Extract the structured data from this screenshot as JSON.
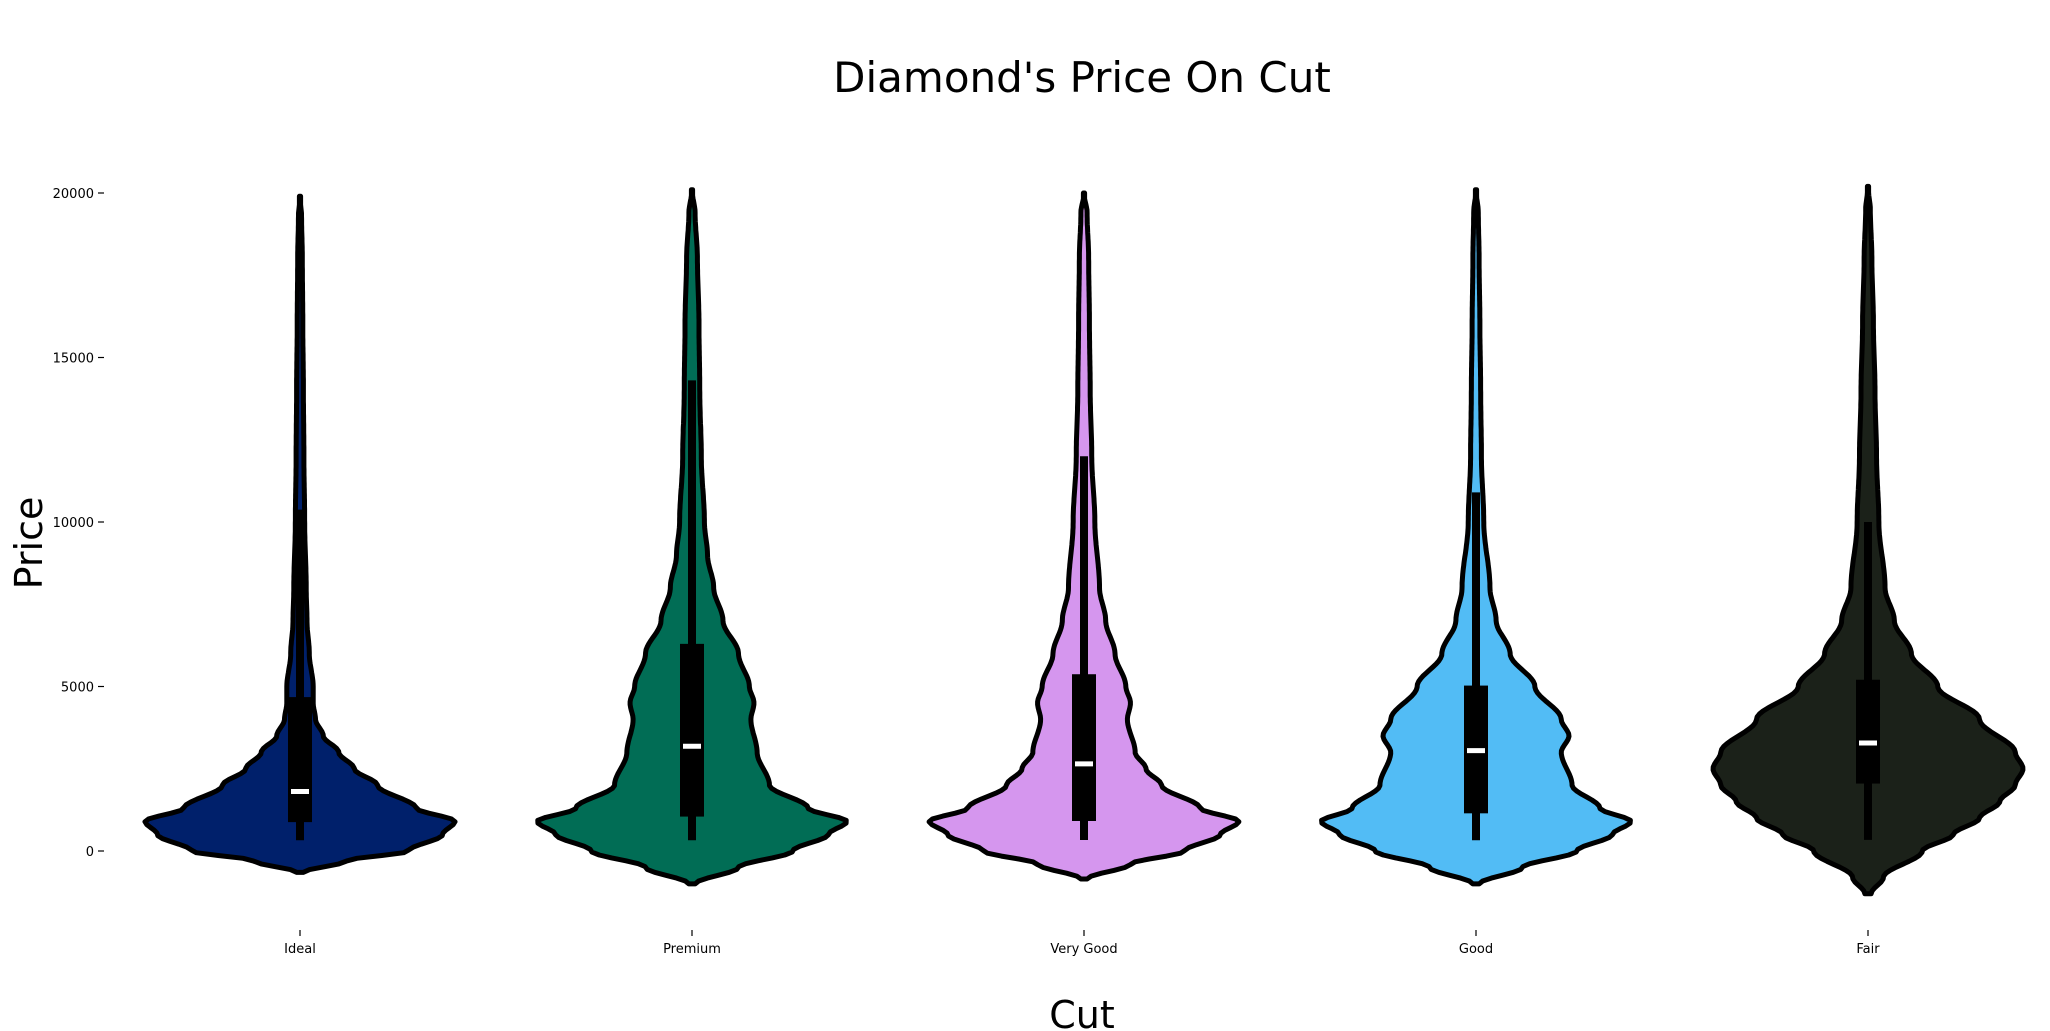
{
  "chart_data": {
    "type": "violin",
    "title": "Diamond's Price On Cut",
    "xlabel": "Cut",
    "ylabel": "Price",
    "ylim": [
      -1500,
      20500
    ],
    "yticks": [
      0,
      5000,
      10000,
      15000,
      20000
    ],
    "ytick_labels": [
      "0",
      "5000",
      "10000",
      "15000",
      "20000"
    ],
    "grid": false,
    "categories": [
      "Ideal",
      "Premium",
      "Very Good",
      "Good",
      "Fair"
    ],
    "colors": [
      "#00206b",
      "#016d55",
      "#d596ee",
      "#52bcf5",
      "#1b2119"
    ],
    "series": [
      {
        "category": "Ideal",
        "min": 326,
        "q1": 878,
        "median": 1810,
        "q3": 4678,
        "whisker_high": 10378,
        "max": 18806,
        "kde_low": -650,
        "kde_high": 19900,
        "density": [
          [
            -650,
            0.02
          ],
          [
            -300,
            0.3
          ],
          [
            0,
            0.7
          ],
          [
            500,
            0.92
          ],
          [
            900,
            1.0
          ],
          [
            1300,
            0.75
          ],
          [
            2000,
            0.5
          ],
          [
            2500,
            0.35
          ],
          [
            3000,
            0.25
          ],
          [
            3500,
            0.15
          ],
          [
            4000,
            0.1
          ],
          [
            4500,
            0.085
          ],
          [
            5000,
            0.085
          ],
          [
            6000,
            0.06
          ],
          [
            7000,
            0.045
          ],
          [
            8000,
            0.04
          ],
          [
            10000,
            0.03
          ],
          [
            12000,
            0.025
          ],
          [
            14000,
            0.022
          ],
          [
            16000,
            0.018
          ],
          [
            18000,
            0.015
          ],
          [
            19300,
            0.01
          ],
          [
            19900,
            0.0
          ]
        ]
      },
      {
        "category": "Premium",
        "min": 326,
        "q1": 1046,
        "median": 3185,
        "q3": 6296,
        "whisker_high": 14304,
        "max": 18823,
        "kde_low": -1000,
        "kde_high": 20100,
        "density": [
          [
            -1000,
            0.02
          ],
          [
            -500,
            0.3
          ],
          [
            0,
            0.65
          ],
          [
            500,
            0.88
          ],
          [
            900,
            1.0
          ],
          [
            1300,
            0.75
          ],
          [
            2000,
            0.5
          ],
          [
            3000,
            0.42
          ],
          [
            4000,
            0.38
          ],
          [
            4500,
            0.4
          ],
          [
            5000,
            0.37
          ],
          [
            6000,
            0.3
          ],
          [
            7000,
            0.2
          ],
          [
            8000,
            0.14
          ],
          [
            9000,
            0.1
          ],
          [
            10000,
            0.08
          ],
          [
            12000,
            0.06
          ],
          [
            14000,
            0.05
          ],
          [
            16000,
            0.045
          ],
          [
            18000,
            0.035
          ],
          [
            19400,
            0.02
          ],
          [
            20100,
            0.0
          ]
        ]
      },
      {
        "category": "Very Good",
        "min": 336,
        "q1": 912,
        "median": 2648,
        "q3": 5373,
        "whisker_high": 12000,
        "max": 18818,
        "kde_low": -850,
        "kde_high": 20000,
        "density": [
          [
            -850,
            0.02
          ],
          [
            -400,
            0.3
          ],
          [
            0,
            0.65
          ],
          [
            500,
            0.88
          ],
          [
            900,
            1.0
          ],
          [
            1300,
            0.75
          ],
          [
            2000,
            0.5
          ],
          [
            2500,
            0.4
          ],
          [
            3000,
            0.33
          ],
          [
            4000,
            0.28
          ],
          [
            4500,
            0.3
          ],
          [
            5000,
            0.27
          ],
          [
            6000,
            0.2
          ],
          [
            7000,
            0.14
          ],
          [
            8000,
            0.1
          ],
          [
            10000,
            0.07
          ],
          [
            12000,
            0.05
          ],
          [
            14000,
            0.04
          ],
          [
            16000,
            0.035
          ],
          [
            18000,
            0.03
          ],
          [
            19400,
            0.02
          ],
          [
            20000,
            0.0
          ]
        ]
      },
      {
        "category": "Good",
        "min": 327,
        "q1": 1145,
        "median": 3050,
        "q3": 5028,
        "whisker_high": 10900,
        "max": 18788,
        "kde_low": -1000,
        "kde_high": 20100,
        "density": [
          [
            -1000,
            0.02
          ],
          [
            -500,
            0.3
          ],
          [
            0,
            0.65
          ],
          [
            500,
            0.88
          ],
          [
            900,
            1.0
          ],
          [
            1300,
            0.8
          ],
          [
            2000,
            0.62
          ],
          [
            3000,
            0.55
          ],
          [
            3500,
            0.6
          ],
          [
            4000,
            0.55
          ],
          [
            5000,
            0.38
          ],
          [
            6000,
            0.22
          ],
          [
            7000,
            0.13
          ],
          [
            8000,
            0.09
          ],
          [
            10000,
            0.05
          ],
          [
            12000,
            0.035
          ],
          [
            14000,
            0.03
          ],
          [
            16000,
            0.025
          ],
          [
            18000,
            0.02
          ],
          [
            19400,
            0.015
          ],
          [
            20100,
            0.0
          ]
        ]
      },
      {
        "category": "Fair",
        "min": 337,
        "q1": 2050,
        "median": 3282,
        "q3": 5206,
        "whisker_high": 10000,
        "max": 18574,
        "kde_low": -1300,
        "kde_high": 20200,
        "density": [
          [
            -1300,
            0.02
          ],
          [
            -800,
            0.1
          ],
          [
            0,
            0.35
          ],
          [
            500,
            0.55
          ],
          [
            1000,
            0.72
          ],
          [
            1500,
            0.85
          ],
          [
            2000,
            0.95
          ],
          [
            2500,
            1.0
          ],
          [
            3000,
            0.95
          ],
          [
            4000,
            0.72
          ],
          [
            5000,
            0.45
          ],
          [
            6000,
            0.28
          ],
          [
            7000,
            0.17
          ],
          [
            8000,
            0.11
          ],
          [
            10000,
            0.07
          ],
          [
            12000,
            0.055
          ],
          [
            14000,
            0.045
          ],
          [
            16000,
            0.035
          ],
          [
            18000,
            0.025
          ],
          [
            19500,
            0.015
          ],
          [
            20200,
            0.0
          ]
        ]
      }
    ]
  }
}
